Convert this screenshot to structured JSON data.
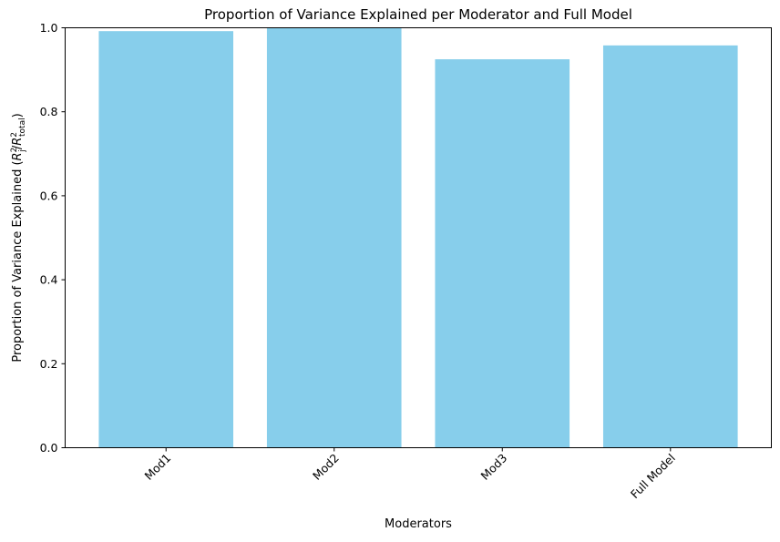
{
  "chart_data": {
    "type": "bar",
    "title": "Proportion of Variance Explained per Moderator and Full Model",
    "xlabel": "Moderators",
    "ylabel": {
      "prefix": "Proportion of Variance Explained (",
      "var1": "R",
      "sup1": "2",
      "sub1": "j",
      "slash": "/",
      "var2": "R",
      "sup2": "2",
      "sub2": "total",
      "suffix": ")"
    },
    "categories": [
      "Mod1",
      "Mod2",
      "Mod3",
      "Full Model"
    ],
    "values": [
      0.992,
      1.0,
      0.925,
      0.958
    ],
    "ylim": [
      0,
      1.0
    ],
    "yticks": [
      "0.0",
      "0.2",
      "0.4",
      "0.6",
      "0.8",
      "1.0"
    ],
    "bar_color": "#87CEEB",
    "grid": false,
    "legend": "none"
  }
}
